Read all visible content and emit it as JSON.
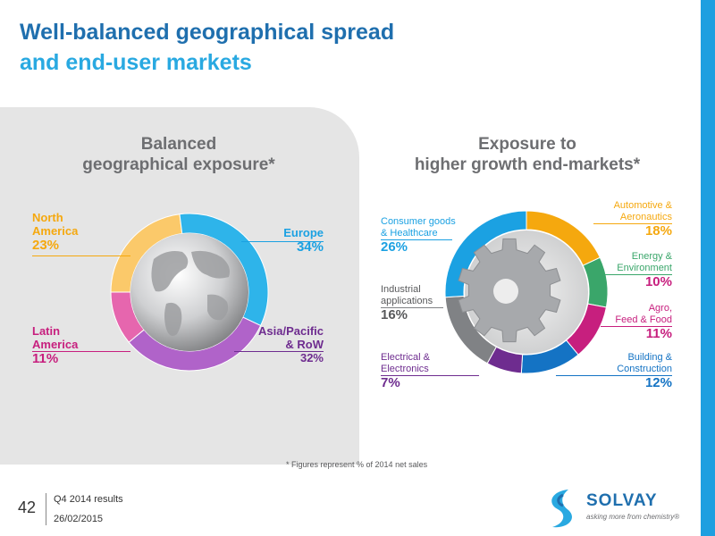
{
  "header": {
    "title_line1": "Well-balanced geographical spread",
    "title_line2": "and end-user markets"
  },
  "chart_data": [
    {
      "type": "pie",
      "title_line1": "Balanced",
      "title_line2": "geographical exposure*",
      "slices": [
        {
          "name_lines": [
            "North",
            "America"
          ],
          "value": 23,
          "label": "23%",
          "color": "#fbc96a"
        },
        {
          "name_lines": [
            "Europe"
          ],
          "value": 34,
          "label": "34%",
          "color": "#2eb4ea"
        },
        {
          "name_lines": [
            "Asia/Pacific",
            "& RoW"
          ],
          "value": 32,
          "label": "32%",
          "color": "#b063c9"
        },
        {
          "name_lines": [
            "Latin",
            "America"
          ],
          "value": 11,
          "label": "11%",
          "color": "#e666ae"
        }
      ]
    },
    {
      "type": "pie",
      "title_line1": "Exposure to",
      "title_line2": "higher growth end-markets*",
      "slices": [
        {
          "name_lines": [
            "Automotive &",
            "Aeronautics"
          ],
          "value": 18,
          "label": "18%",
          "color": "#f5a80e"
        },
        {
          "name_lines": [
            "Energy &",
            "Environment"
          ],
          "value": 10,
          "label": "10%",
          "color": "#3aa66a"
        },
        {
          "name_lines": [
            "Agro,",
            "Feed & Food"
          ],
          "value": 11,
          "label": "11%",
          "color": "#c71f7e"
        },
        {
          "name_lines": [
            "Building &",
            "Construction"
          ],
          "value": 12,
          "label": "12%",
          "color": "#1473c4"
        },
        {
          "name_lines": [
            "Electrical &",
            "Electronics"
          ],
          "value": 7,
          "label": "7%",
          "color": "#6e2c8f"
        },
        {
          "name_lines": [
            "Industrial",
            "applications"
          ],
          "value": 16,
          "label": "16%",
          "color": "#808285"
        },
        {
          "name_lines": [
            "Consumer goods",
            "& Healthcare"
          ],
          "value": 26,
          "label": "26%",
          "color": "#1ba1e2"
        }
      ]
    }
  ],
  "footnote": "*  Figures represent % of 2014 net sales",
  "footer": {
    "page_number": "42",
    "line1": "Q4 2014 results",
    "line2": "26/02/2015",
    "logo_word": "SOLVAY",
    "logo_tagline": "asking more from chemistry®"
  }
}
